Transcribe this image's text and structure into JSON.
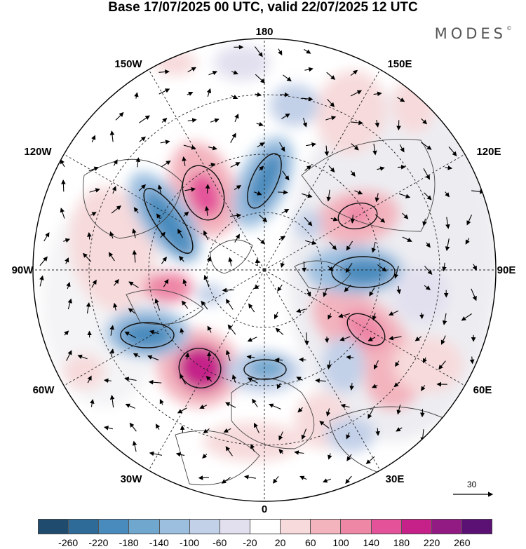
{
  "title": "Base 17/07/2025 00 UTC, valid 22/07/2025 12 UTC",
  "brand": "MODES",
  "brand_mark": "©",
  "longitudes": {
    "top": "180",
    "bottom": "0",
    "left": "90W",
    "right": "90E",
    "upper_left": "150W",
    "upper_left_mid": "120W",
    "upper_right": "150E",
    "upper_right_mid": "120E",
    "lower_left": "30W",
    "lower_left_mid": "60W",
    "lower_right": "30E",
    "lower_right_mid": "60E"
  },
  "vector_scale_label": "30",
  "colorbar": {
    "colors": [
      "#1f4b6e",
      "#2e6b98",
      "#4a8bbd",
      "#6fa7cf",
      "#9cbfe0",
      "#c2d0e8",
      "#e2e0ef",
      "#ffffff",
      "#f7dadb",
      "#f3b4be",
      "#ee86a6",
      "#e4529a",
      "#c52189",
      "#911b82",
      "#5b1074"
    ],
    "ticks": [
      "-260",
      "-220",
      "-180",
      "-140",
      "-100",
      "-60",
      "-20",
      "20",
      "60",
      "100",
      "140",
      "180",
      "220",
      "260"
    ]
  }
}
